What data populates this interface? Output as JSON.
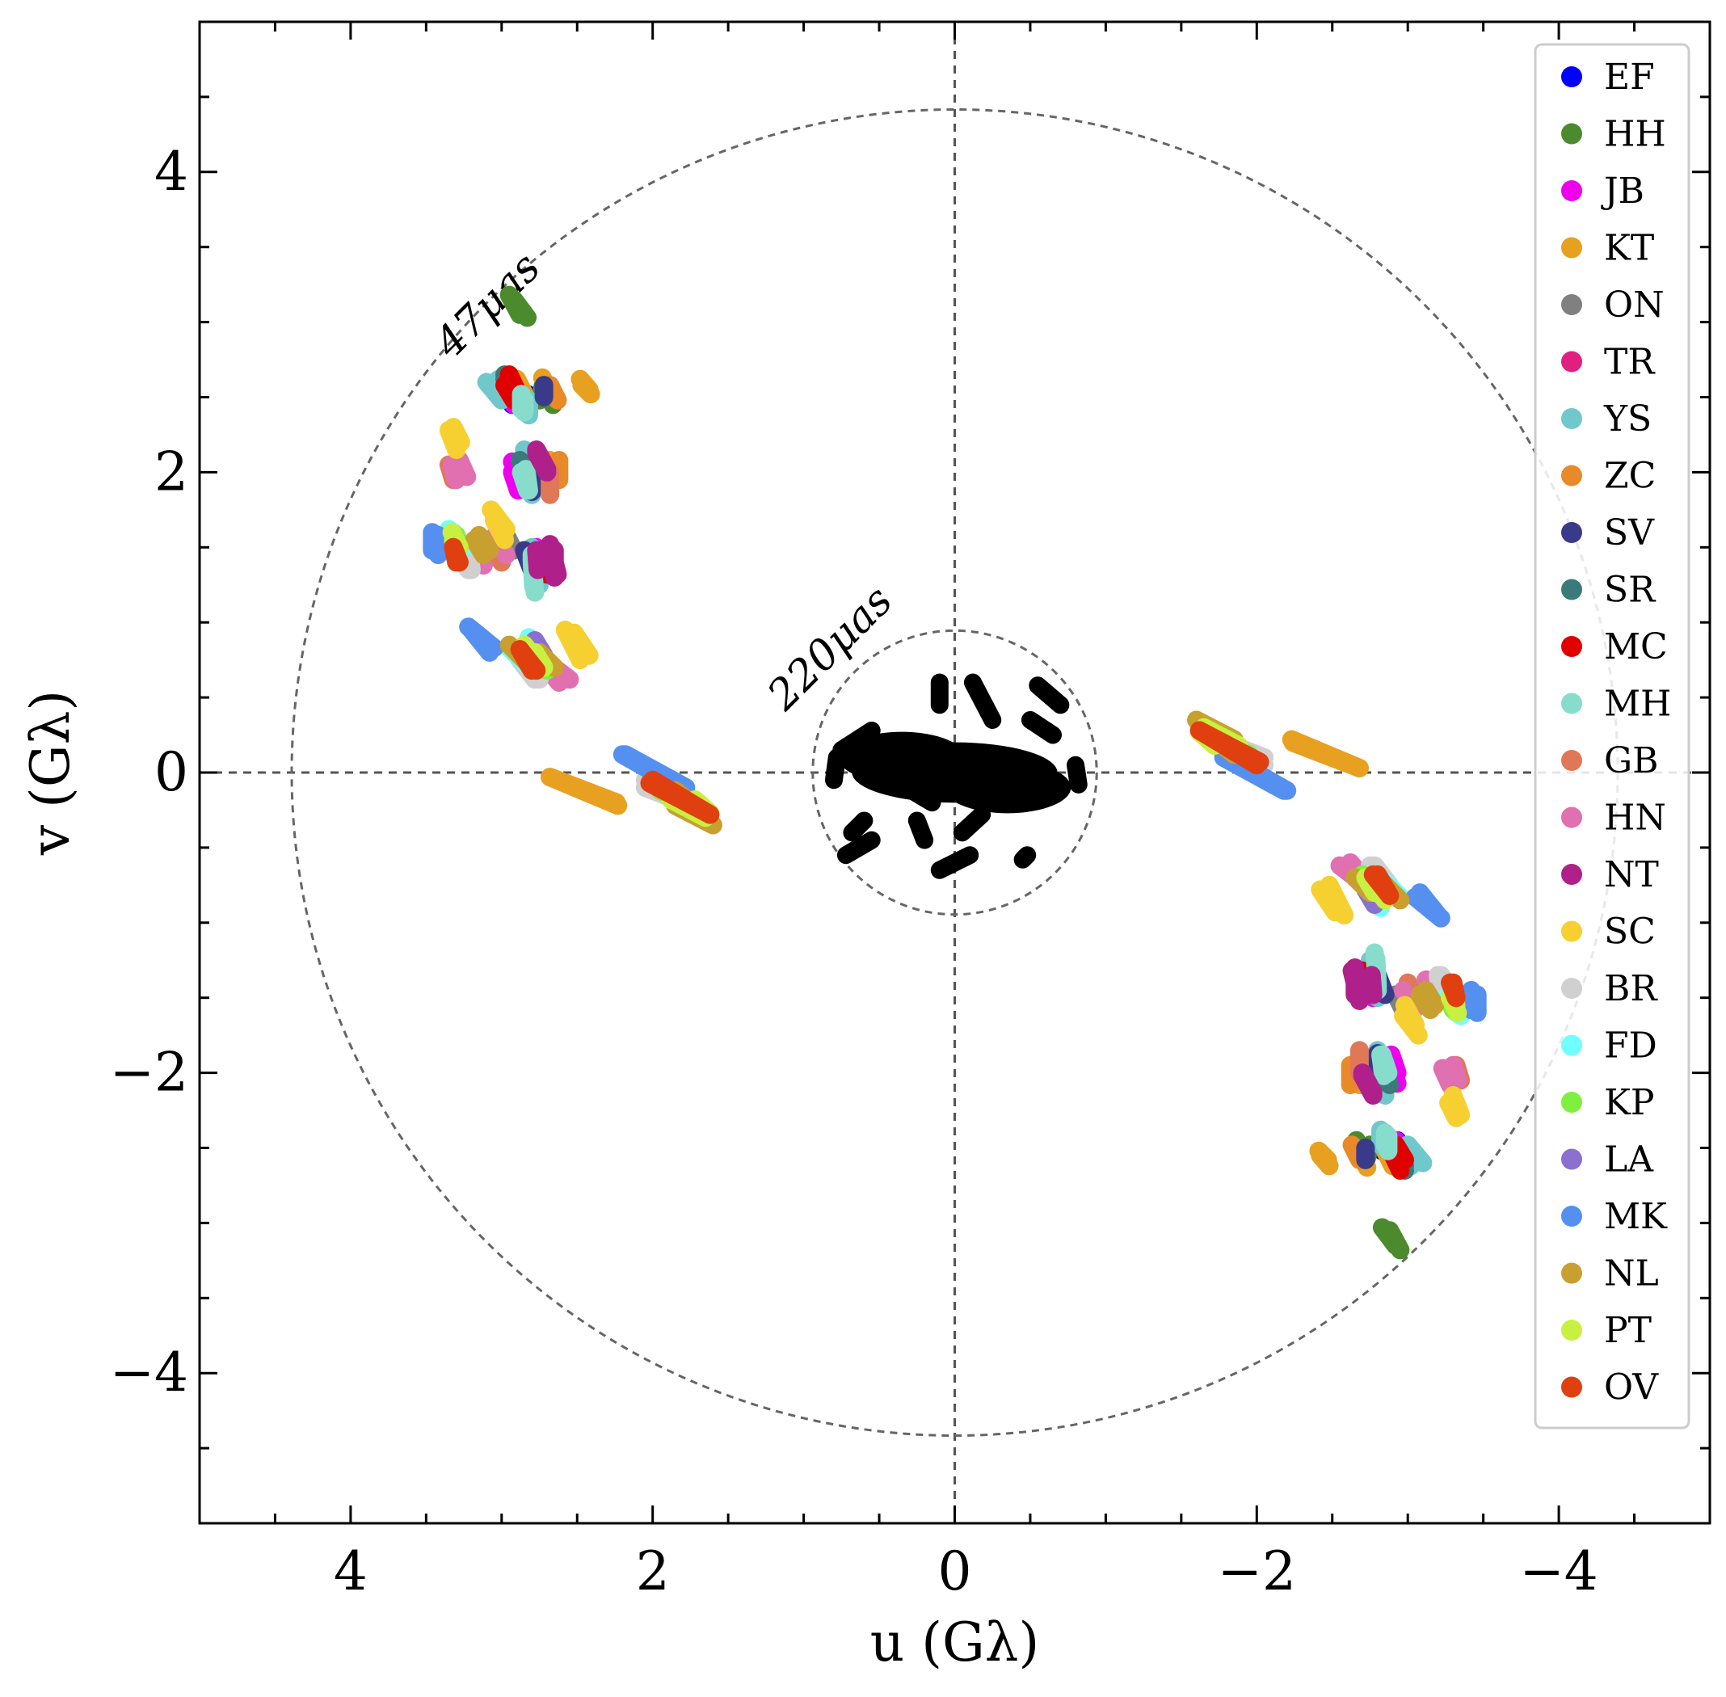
{
  "chart_data": {
    "type": "scatter",
    "xlabel": "u (Gλ)",
    "ylabel": "v (Gλ)",
    "xlim": [
      5,
      -5
    ],
    "ylim": [
      -5,
      5
    ],
    "xticks": [
      4,
      2,
      0,
      -2,
      -4
    ],
    "yticks": [
      4,
      2,
      0,
      -2,
      -4
    ],
    "xtick_labels": [
      "4",
      "2",
      "0",
      "−2",
      "−4"
    ],
    "ytick_labels": [
      "4",
      "2",
      "0",
      "−2",
      "−4"
    ],
    "grid": false,
    "legend_position": "upper right",
    "reference_lines": {
      "u": 0,
      "v": 0
    },
    "circles": [
      {
        "radius": 4.39,
        "label": "47μas"
      },
      {
        "radius": 0.94,
        "label": "220μas"
      }
    ],
    "inner_cluster_color": "#000000",
    "series": [
      {
        "name": "EF",
        "color": "#0000ff",
        "segments": [
          [
            2.93,
            2.45,
            2.83,
            2.52
          ],
          [
            2.92,
            2.03,
            2.81,
            2.13
          ]
        ]
      },
      {
        "name": "HH",
        "color": "#4c8a2e",
        "segments": [
          [
            2.92,
            3.15,
            2.83,
            3.03
          ],
          [
            2.72,
            2.57,
            2.66,
            2.45
          ],
          [
            -2.75,
            -2.48,
            -2.72,
            -2.6
          ],
          [
            -2.88,
            -3.05,
            -2.95,
            -3.18
          ]
        ]
      },
      {
        "name": "JB",
        "color": "#ee00ee",
        "segments": [
          [
            3.0,
            2.55,
            2.92,
            2.45
          ],
          [
            2.93,
            2.07,
            2.85,
            1.95
          ],
          [
            -2.89,
            -1.88,
            -2.93,
            -2.0
          ],
          [
            -2.88,
            -2.45,
            -2.95,
            -2.58
          ],
          [
            -2.75,
            -1.4,
            -2.77,
            -1.5
          ]
        ]
      },
      {
        "name": "KT",
        "color": "#e8a020",
        "segments": [
          [
            2.73,
            2.63,
            2.68,
            2.52
          ],
          [
            2.47,
            2.58,
            2.41,
            2.52
          ],
          [
            2.68,
            2.08,
            2.66,
            1.95
          ],
          [
            2.68,
            -0.03,
            2.23,
            -0.22
          ],
          [
            -2.24,
            0.2,
            -2.68,
            0.03
          ],
          [
            -2.42,
            -2.55,
            -2.48,
            -2.62
          ],
          [
            -2.85,
            -2.52,
            -2.9,
            -2.62
          ]
        ]
      },
      {
        "name": "ON",
        "color": "#808080",
        "segments": [
          [
            -2.92,
            -1.48,
            -2.97,
            -1.58
          ]
        ]
      },
      {
        "name": "TR",
        "color": "#e0207f",
        "segments": [
          [
            -2.92,
            -2.52,
            -2.95,
            -2.58
          ]
        ]
      },
      {
        "name": "YS",
        "color": "#70c8cc",
        "segments": [
          [
            3.1,
            2.6,
            3.0,
            2.48
          ],
          [
            2.82,
            2.48,
            2.82,
            2.38
          ],
          [
            2.85,
            2.15,
            2.78,
            2.05
          ],
          [
            2.84,
            2.05,
            2.8,
            1.92
          ],
          [
            2.8,
            1.5,
            2.78,
            1.22
          ],
          [
            -2.75,
            -1.25,
            -2.77,
            -1.45
          ],
          [
            -2.8,
            -1.85,
            -2.85,
            -2.1
          ],
          [
            -2.95,
            -2.52,
            -3.02,
            -2.62
          ]
        ]
      },
      {
        "name": "ZC",
        "color": "#e88a2a",
        "segments": [
          [
            2.68,
            2.58,
            2.63,
            2.48
          ],
          [
            2.72,
            2.06,
            2.68,
            1.95
          ],
          [
            -2.62,
            -1.95,
            -2.62,
            -2.08
          ]
        ]
      },
      {
        "name": "SV",
        "color": "#3a3a8a",
        "segments": [
          [
            2.85,
            1.48,
            2.8,
            1.35
          ],
          [
            2.72,
            2.58,
            2.72,
            2.5
          ],
          [
            -2.8,
            -1.87,
            -2.8,
            -1.95
          ]
        ]
      },
      {
        "name": "SR",
        "color": "#3a7a7a",
        "segments": [
          [
            2.98,
            2.62,
            2.93,
            2.52
          ],
          [
            2.88,
            2.08,
            2.83,
            1.98
          ],
          [
            -2.92,
            -2.55,
            -2.98,
            -2.65
          ]
        ]
      },
      {
        "name": "MC",
        "color": "#e00000",
        "segments": [
          [
            2.98,
            2.58,
            2.92,
            2.48
          ],
          [
            2.8,
            1.45,
            2.76,
            1.32
          ],
          [
            2.73,
            1.42,
            2.7,
            1.32
          ],
          [
            -2.87,
            -2.48,
            -2.95,
            -2.65
          ],
          [
            -2.68,
            -1.38,
            -2.72,
            -1.48
          ]
        ]
      },
      {
        "name": "MH",
        "color": "#88dccc",
        "segments": [
          [
            2.85,
            2.48,
            2.85,
            2.4
          ],
          [
            2.84,
            2.02,
            2.82,
            1.88
          ],
          [
            2.8,
            1.42,
            2.79,
            1.24
          ],
          [
            -2.78,
            -1.2,
            -2.8,
            -1.45
          ],
          [
            -2.83,
            -1.88,
            -2.87,
            -2.0
          ],
          [
            -2.87,
            -2.42,
            -2.87,
            -2.52
          ]
        ]
      },
      {
        "name": "GB",
        "color": "#e07858",
        "segments": [
          [
            3.08,
            1.52,
            3.0,
            1.4
          ],
          [
            2.75,
            0.77,
            2.6,
            0.65
          ],
          [
            -2.68,
            -1.85,
            -2.68,
            -2.0
          ],
          [
            -3.32,
            -1.95,
            -3.35,
            -2.05
          ]
        ]
      },
      {
        "name": "HN",
        "color": "#e070b0",
        "segments": [
          [
            3.28,
            2.08,
            3.23,
            1.97
          ],
          [
            3.05,
            1.57,
            2.97,
            1.45
          ],
          [
            2.78,
            0.8,
            2.62,
            0.6
          ],
          [
            -2.55,
            -0.62,
            -2.68,
            -0.72
          ],
          [
            -3.12,
            -1.38,
            -3.22,
            -1.52
          ],
          [
            -3.3,
            -1.95,
            -3.33,
            -2.05
          ]
        ]
      },
      {
        "name": "NT",
        "color": "#b0208a",
        "segments": [
          [
            2.77,
            2.13,
            2.7,
            2.0
          ],
          [
            2.68,
            1.52,
            2.63,
            1.32
          ],
          [
            2.77,
            1.48,
            2.76,
            1.35
          ],
          [
            -2.65,
            -1.3,
            -2.65,
            -1.48
          ],
          [
            -2.7,
            -2.02,
            -2.77,
            -2.15
          ]
        ]
      },
      {
        "name": "SC",
        "color": "#f5d030",
        "segments": [
          [
            3.32,
            2.3,
            3.27,
            2.2
          ],
          [
            3.07,
            1.75,
            2.97,
            1.62
          ],
          [
            2.52,
            0.93,
            2.42,
            0.78
          ],
          [
            -2.48,
            -0.75,
            -2.58,
            -0.95
          ],
          [
            -2.98,
            -1.55,
            -3.05,
            -1.68
          ],
          [
            -3.3,
            -2.15,
            -3.35,
            -2.28
          ]
        ]
      },
      {
        "name": "BR",
        "color": "#d0d0d0",
        "segments": [
          [
            3.22,
            1.52,
            3.2,
            1.35
          ],
          [
            2.9,
            0.8,
            2.75,
            0.62
          ],
          [
            2.05,
            -0.05,
            1.98,
            -0.12
          ],
          [
            -1.72,
            0.23,
            -2.05,
            0.1
          ],
          [
            -2.78,
            -0.62,
            -2.88,
            -0.75
          ],
          [
            -3.22,
            -1.35,
            -3.27,
            -1.42
          ]
        ]
      },
      {
        "name": "FD",
        "color": "#70ffff",
        "segments": [
          [
            3.35,
            1.62,
            3.32,
            1.52
          ],
          [
            2.95,
            0.83,
            2.85,
            0.73
          ],
          [
            -2.68,
            -0.7,
            -2.82,
            -0.9
          ],
          [
            -3.25,
            -1.5,
            -3.32,
            -1.6
          ]
        ]
      },
      {
        "name": "KP",
        "color": "#80f040",
        "segments": [
          [
            3.3,
            1.58,
            3.28,
            1.5
          ],
          [
            2.82,
            0.8,
            2.7,
            0.68
          ],
          [
            1.78,
            -0.2,
            1.62,
            -0.28
          ],
          [
            -1.62,
            0.28,
            -1.95,
            0.12
          ]
        ]
      },
      {
        "name": "LA",
        "color": "#8a70d0",
        "segments": [
          [
            -2.72,
            -0.78,
            -2.78,
            -0.88
          ]
        ]
      },
      {
        "name": "MK",
        "color": "#5590f0",
        "segments": [
          [
            3.46,
            1.6,
            3.46,
            1.48
          ],
          [
            3.22,
            0.97,
            3.05,
            0.83
          ],
          [
            2.2,
            0.12,
            1.78,
            -0.12
          ],
          [
            -1.78,
            0.1,
            -2.18,
            -0.12
          ],
          [
            -3.08,
            -0.8,
            -3.2,
            -0.95
          ],
          [
            -3.42,
            -1.45,
            -3.42,
            -1.58
          ]
        ]
      },
      {
        "name": "NL",
        "color": "#c8a030",
        "segments": [
          [
            3.15,
            1.58,
            3.08,
            1.48
          ],
          [
            2.95,
            0.85,
            2.82,
            0.72
          ],
          [
            1.85,
            -0.12,
            1.65,
            -0.28
          ],
          [
            -1.6,
            0.35,
            -1.85,
            0.22
          ],
          [
            -2.65,
            -0.7,
            -2.75,
            -0.8
          ],
          [
            -3.12,
            -1.45,
            -3.18,
            -1.55
          ]
        ]
      },
      {
        "name": "PT",
        "color": "#c8f040",
        "segments": [
          [
            3.32,
            1.55,
            3.3,
            1.45
          ],
          [
            2.78,
            0.8,
            2.72,
            0.7
          ],
          [
            1.72,
            -0.18,
            1.62,
            -0.27
          ],
          [
            -1.65,
            0.3,
            -1.88,
            0.18
          ],
          [
            -2.75,
            -0.72,
            -2.85,
            -0.85
          ],
          [
            -3.28,
            -1.5,
            -3.33,
            -1.6
          ]
        ]
      },
      {
        "name": "OV",
        "color": "#e04010",
        "segments": [
          [
            3.32,
            1.5,
            3.3,
            1.4
          ],
          [
            2.88,
            0.82,
            2.77,
            0.68
          ],
          [
            2.0,
            -0.05,
            1.62,
            -0.28
          ],
          [
            -1.62,
            0.28,
            -2.02,
            0.07
          ],
          [
            -2.8,
            -0.68,
            -2.88,
            -0.82
          ],
          [
            -3.28,
            -1.4,
            -3.32,
            -1.5
          ]
        ]
      }
    ]
  }
}
